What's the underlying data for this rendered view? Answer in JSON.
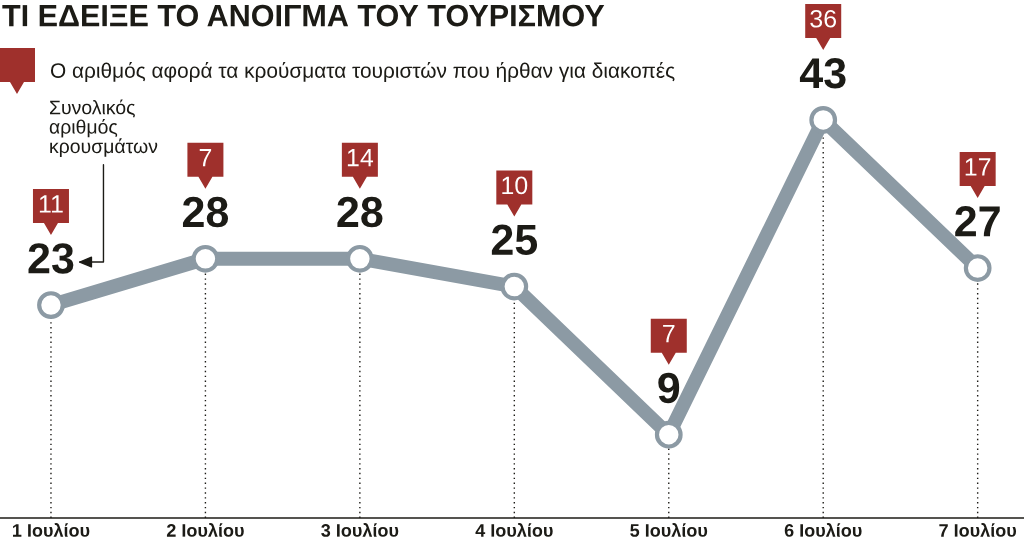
{
  "chart_data": {
    "type": "line",
    "title": "ΤΙ ΕΔΕΙΞΕ ΤΟ ΑΝΟΙΓΜΑ ΤΟΥ ΤΟΥΡΙΣΜΟΥ",
    "categories": [
      "1 Ιουλίου",
      "2 Ιουλίου",
      "3 Ιουλίου",
      "4 Ιουλίου",
      "5 Ιουλίου",
      "6 Ιουλίου",
      "7 Ιουλίου"
    ],
    "series": [
      {
        "name": "Συνολικός αριθμός κρουσμάτων",
        "color": "#8c9aa4",
        "values": [
          23,
          28,
          28,
          25,
          9,
          43,
          27
        ]
      }
    ],
    "marker": "circle",
    "line_style": "solid",
    "data_labels": true,
    "grid": "x",
    "annotations": [
      "Ο αριθμός αφορά τα κρούσματα τουριστών που ήρθαν για διακοπές",
      "11",
      "7",
      "14",
      "10",
      "7",
      "36",
      "17"
    ]
  }
}
